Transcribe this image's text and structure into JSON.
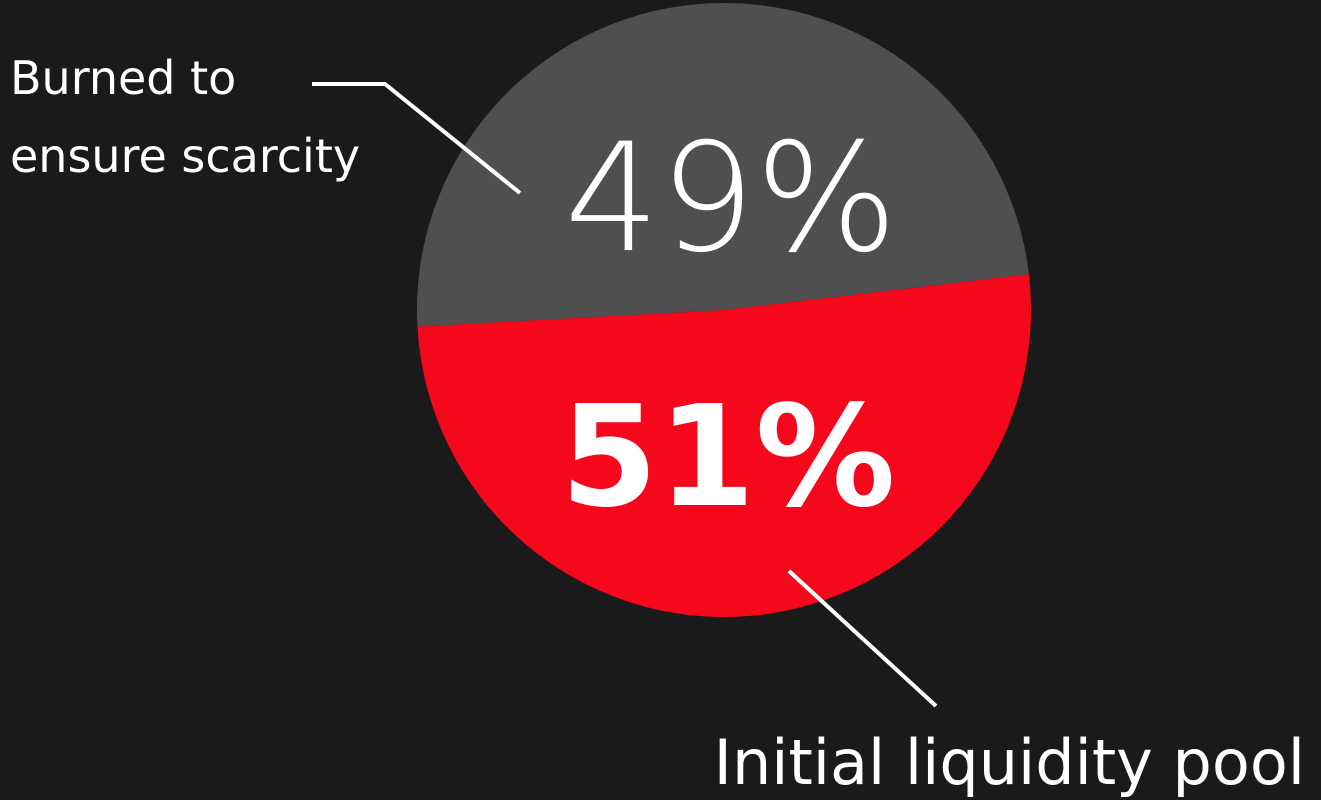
{
  "chart_data": {
    "type": "pie",
    "slices": [
      {
        "label_lines": [
          "Burned to",
          "ensure scarcity"
        ],
        "value": 49,
        "value_label": "49%",
        "color": "#4f4f4f"
      },
      {
        "label_lines": [
          "Initial liquidity pool"
        ],
        "value": 51,
        "value_label": "51%",
        "color": "#f5071c"
      }
    ],
    "text_color": "#ffffff",
    "background": "#1a1a1a"
  }
}
